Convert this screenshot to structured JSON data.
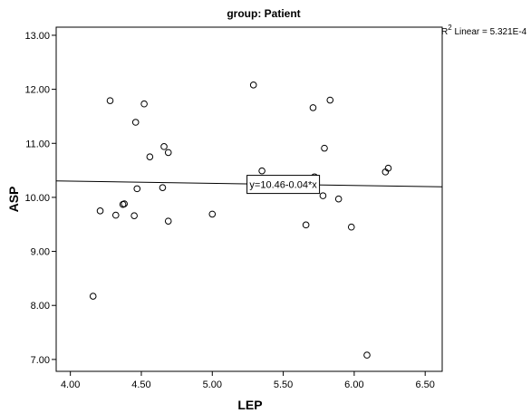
{
  "chart_data": {
    "type": "scatter",
    "title": "group: Patient",
    "xlabel": "LEP",
    "ylabel": "ASP",
    "xlim": [
      3.9,
      6.62
    ],
    "ylim": [
      6.78,
      13.15
    ],
    "xticks": [
      "4.00",
      "4.50",
      "5.00",
      "5.50",
      "6.00",
      "6.50"
    ],
    "yticks": [
      "7.00",
      "8.00",
      "9.00",
      "10.00",
      "11.00",
      "12.00",
      "13.00"
    ],
    "grid": false,
    "points": [
      {
        "x": 4.16,
        "y": 8.17
      },
      {
        "x": 4.21,
        "y": 9.75
      },
      {
        "x": 4.28,
        "y": 11.79
      },
      {
        "x": 4.32,
        "y": 9.67
      },
      {
        "x": 4.37,
        "y": 9.87
      },
      {
        "x": 4.38,
        "y": 9.88
      },
      {
        "x": 4.45,
        "y": 9.66
      },
      {
        "x": 4.46,
        "y": 11.39
      },
      {
        "x": 4.47,
        "y": 10.16
      },
      {
        "x": 4.52,
        "y": 11.73
      },
      {
        "x": 4.56,
        "y": 10.75
      },
      {
        "x": 4.65,
        "y": 10.18
      },
      {
        "x": 4.66,
        "y": 10.94
      },
      {
        "x": 4.69,
        "y": 10.83
      },
      {
        "x": 4.69,
        "y": 9.56
      },
      {
        "x": 5.0,
        "y": 9.69
      },
      {
        "x": 5.29,
        "y": 12.08
      },
      {
        "x": 5.35,
        "y": 10.49
      },
      {
        "x": 5.66,
        "y": 9.49
      },
      {
        "x": 5.71,
        "y": 11.66
      },
      {
        "x": 5.72,
        "y": 10.38
      },
      {
        "x": 5.78,
        "y": 10.03
      },
      {
        "x": 5.79,
        "y": 10.91
      },
      {
        "x": 5.83,
        "y": 11.8
      },
      {
        "x": 5.89,
        "y": 9.97
      },
      {
        "x": 5.98,
        "y": 9.45
      },
      {
        "x": 6.09,
        "y": 7.08
      },
      {
        "x": 6.22,
        "y": 10.47
      },
      {
        "x": 6.24,
        "y": 10.54
      }
    ],
    "fit_line": {
      "intercept": 10.46,
      "slope": -0.04,
      "label": "y=10.46-0.04*x"
    },
    "r2_label": {
      "base": "R",
      "superscript": "2",
      "text": " Linear = 5.321E-4"
    }
  }
}
